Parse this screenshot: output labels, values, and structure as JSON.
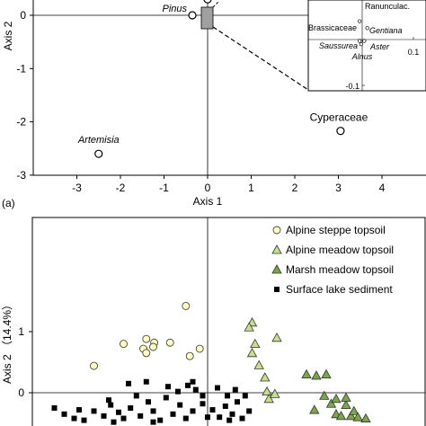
{
  "colors": {
    "steppe_fill": "#ffffc0",
    "meadow_fill": "#c6e08a",
    "marsh_fill": "#7aa64a",
    "lake_fill": "#000000",
    "inset_box": "#a0a0a0"
  },
  "chart_data": [
    {
      "type": "scatter",
      "panel_label": "(a)",
      "xlabel": "Axis 1",
      "ylabel": "Axis 2",
      "xlim": [
        -4,
        4
      ],
      "ylim": [
        -3,
        0.3
      ],
      "x_ticks": [
        "-3",
        "-2",
        "-1",
        "0",
        "1",
        "2",
        "3",
        "4"
      ],
      "y_ticks": [
        "0",
        "-1",
        "-2",
        "-3"
      ],
      "points": [
        {
          "name": "Pinus",
          "x": -0.35,
          "y": 0.0
        },
        {
          "name": "Artemisia",
          "x": -2.5,
          "y": -2.6
        },
        {
          "name": "Cyperaceae",
          "x": 3.05,
          "y": -2.17
        },
        {
          "name": "",
          "x": 0.0,
          "y": 0.3
        }
      ],
      "inset": {
        "points": [
          {
            "name": "Brassicaceae",
            "x": -0.005,
            "y": 0.04
          },
          {
            "name": "Ranunculac.",
            "x": 0.06,
            "y": 0.13
          },
          {
            "name": "Gentiana",
            "x": 0.01,
            "y": 0.025
          },
          {
            "name": "Saussurea",
            "x": -0.005,
            "y": -0.003
          },
          {
            "name": "Aster",
            "x": 0.004,
            "y": -0.003
          },
          {
            "name": "Alnus",
            "x": -0.002,
            "y": -0.01
          }
        ],
        "tick_x": "0.1",
        "tick_y": "-0.1"
      }
    },
    {
      "type": "scatter",
      "ylabel": "Axis 2 （14.4%）",
      "ylim": [
        -0.5,
        2.2
      ],
      "y_ticks": [
        "1",
        "0"
      ],
      "legend": [
        "Alpine steppe topsoil",
        "Alpine meadow topsoil",
        "Marsh meadow topsoil",
        "Surface lake sediment"
      ],
      "series": [
        {
          "name": "Alpine steppe topsoil",
          "points": [
            [
              -0.22,
              1.42
            ],
            [
              -0.62,
              0.88
            ],
            [
              -0.54,
              0.82
            ],
            [
              -0.85,
              0.8
            ],
            [
              -0.55,
              0.75
            ],
            [
              -0.65,
              0.72
            ],
            [
              -0.62,
              0.65
            ],
            [
              -0.38,
              0.82
            ],
            [
              -0.18,
              0.6
            ],
            [
              -0.08,
              0.72
            ],
            [
              -1.15,
              0.44
            ],
            [
              -1.92,
              -0.2
            ]
          ]
        },
        {
          "name": "Alpine meadow topsoil",
          "points": [
            [
              0.45,
              1.15
            ],
            [
              0.42,
              1.07
            ],
            [
              0.48,
              0.8
            ],
            [
              0.45,
              0.65
            ],
            [
              0.52,
              0.45
            ],
            [
              0.58,
              0.25
            ],
            [
              0.6,
              0.02
            ],
            [
              0.62,
              -0.1
            ],
            [
              0.68,
              -0.02
            ],
            [
              0.7,
              0.9
            ]
          ]
        },
        {
          "name": "Marsh meadow topsoil",
          "points": [
            [
              1.0,
              0.3
            ],
            [
              1.1,
              0.28
            ],
            [
              1.2,
              0.3
            ],
            [
              1.18,
              -0.05
            ],
            [
              1.25,
              -0.18
            ],
            [
              1.3,
              -0.35
            ],
            [
              1.35,
              -0.38
            ],
            [
              1.4,
              -0.2
            ],
            [
              1.45,
              -0.38
            ],
            [
              1.48,
              -0.3
            ],
            [
              1.52,
              -0.4
            ],
            [
              1.6,
              -0.42
            ],
            [
              1.3,
              -0.1
            ],
            [
              1.4,
              -0.08
            ],
            [
              1.08,
              -0.28
            ]
          ]
        },
        {
          "name": "Surface lake sediment",
          "points": [
            [
              -1.55,
              -0.25
            ],
            [
              -1.45,
              -0.35
            ],
            [
              -1.3,
              -0.28
            ],
            [
              -1.25,
              -0.45
            ],
            [
              -1.15,
              -0.3
            ],
            [
              -1.05,
              -0.38
            ],
            [
              -0.98,
              -0.2
            ],
            [
              -0.9,
              -0.32
            ],
            [
              -0.85,
              -0.42
            ],
            [
              -0.78,
              -0.25
            ],
            [
              -0.72,
              -0.05
            ],
            [
              -0.68,
              -0.38
            ],
            [
              -0.6,
              -0.15
            ],
            [
              -0.55,
              -0.3
            ],
            [
              -0.48,
              -0.45
            ],
            [
              -0.42,
              -0.08
            ],
            [
              -0.35,
              -0.35
            ],
            [
              -0.28,
              -0.2
            ],
            [
              -0.22,
              -0.42
            ],
            [
              -0.15,
              -0.3
            ],
            [
              -0.05,
              -0.18
            ],
            [
              0.05,
              -0.28
            ],
            [
              0.12,
              -0.4
            ],
            [
              0.18,
              -0.22
            ],
            [
              0.25,
              -0.35
            ],
            [
              0.3,
              -0.15
            ],
            [
              0.35,
              -0.42
            ],
            [
              0.42,
              -0.3
            ],
            [
              -0.8,
              0.15
            ],
            [
              -0.62,
              0.18
            ],
            [
              -0.4,
              0.1
            ],
            [
              -0.3,
              0.02
            ],
            [
              -0.2,
              0.12
            ],
            [
              -0.12,
              0.05
            ],
            [
              -0.05,
              -0.05
            ],
            [
              0.1,
              0.08
            ],
            [
              0.2,
              -0.05
            ],
            [
              0.28,
              0.05
            ],
            [
              -1.35,
              -0.42
            ],
            [
              -1.0,
              -0.12
            ],
            [
              -0.15,
              0.18
            ],
            [
              0.0,
              -0.4
            ],
            [
              0.22,
              -0.45
            ],
            [
              -0.55,
              -0.48
            ],
            [
              -0.95,
              -0.48
            ],
            [
              0.38,
              -0.05
            ]
          ]
        }
      ]
    }
  ]
}
